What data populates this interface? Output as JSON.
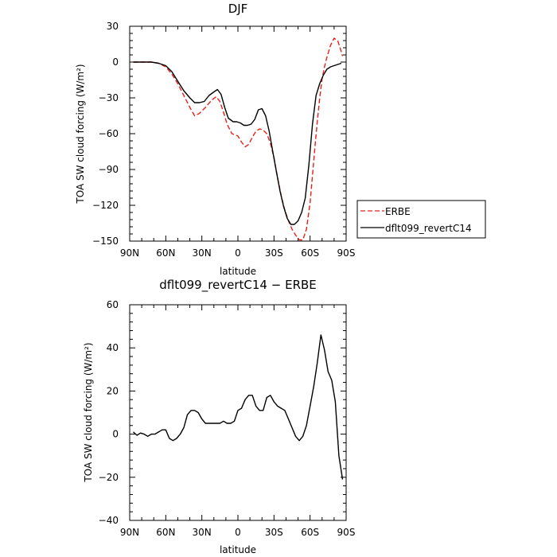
{
  "chart_data": [
    {
      "type": "line",
      "title": "DJF",
      "xlabel": "latitude",
      "ylabel": "TOA SW cloud forcing (W/m²)",
      "xlim": [
        90,
        -90
      ],
      "ylim": [
        -150,
        30
      ],
      "x_ticks": [
        90,
        60,
        30,
        0,
        -30,
        -60,
        -90
      ],
      "x_tick_labels": [
        "90N",
        "60N",
        "30N",
        "0",
        "30S",
        "60S",
        "90S"
      ],
      "y_ticks": [
        30,
        0,
        -30,
        -60,
        -90,
        -120,
        -150
      ],
      "y_tick_labels": [
        "30",
        "0",
        "−30",
        "−60",
        "−90",
        "−120",
        "−150"
      ],
      "legend_position": "right",
      "series": [
        {
          "name": "ERBE",
          "color": "#e8201a",
          "style": "dashed",
          "x": [
            87,
            80,
            72,
            66,
            60,
            55,
            50,
            45,
            40,
            36,
            32,
            27,
            22,
            18,
            15,
            12,
            9,
            5,
            2,
            0,
            -3,
            -6,
            -9,
            -12,
            -15,
            -18,
            -21,
            -24,
            -27,
            -30,
            -33,
            -36,
            -39,
            -42,
            -45,
            -48,
            -51,
            -54,
            -57,
            -60,
            -62,
            -64,
            -66,
            -68,
            -70,
            -72,
            -74,
            -77,
            -80,
            -83,
            -85,
            -87
          ],
          "y": [
            0,
            0,
            0,
            -1,
            -4,
            -10,
            -18,
            -28,
            -38,
            -45,
            -43,
            -38,
            -32,
            -29,
            -33,
            -42,
            -52,
            -60,
            -61,
            -62,
            -67,
            -71,
            -69,
            -63,
            -58,
            -56,
            -57,
            -60,
            -68,
            -80,
            -97,
            -112,
            -124,
            -133,
            -140,
            -145,
            -149,
            -149,
            -140,
            -118,
            -95,
            -72,
            -50,
            -30,
            -14,
            -4,
            4,
            14,
            20,
            18,
            12,
            5
          ]
        },
        {
          "name": "dflt099_revertC14",
          "color": "#000000",
          "style": "solid",
          "x": [
            87,
            80,
            72,
            66,
            60,
            55,
            50,
            45,
            40,
            36,
            32,
            28,
            24,
            20,
            17,
            14,
            11,
            8,
            4,
            1,
            -2,
            -5,
            -8,
            -11,
            -14,
            -17,
            -20,
            -23,
            -26,
            -29,
            -32,
            -35,
            -38,
            -41,
            -44,
            -47,
            -50,
            -53,
            -56,
            -59,
            -62,
            -65,
            -68,
            -71,
            -74,
            -77,
            -80,
            -83,
            -86
          ],
          "y": [
            0,
            0,
            0,
            -1,
            -3,
            -8,
            -16,
            -24,
            -30,
            -34,
            -34,
            -33,
            -28,
            -25,
            -23,
            -27,
            -38,
            -47,
            -50,
            -50,
            -51,
            -53,
            -53,
            -52,
            -48,
            -40,
            -39,
            -45,
            -58,
            -75,
            -92,
            -108,
            -121,
            -131,
            -136,
            -136,
            -133,
            -126,
            -114,
            -86,
            -52,
            -28,
            -18,
            -11,
            -6,
            -4,
            -3,
            -2,
            -1
          ]
        }
      ]
    },
    {
      "type": "line",
      "title": "dflt099_revertC14 − ERBE",
      "xlabel": "latitude",
      "ylabel": "TOA SW cloud forcing (W/m²)",
      "xlim": [
        90,
        -90
      ],
      "ylim": [
        -40,
        60
      ],
      "x_ticks": [
        90,
        60,
        30,
        0,
        -30,
        -60,
        -90
      ],
      "x_tick_labels": [
        "90N",
        "60N",
        "30N",
        "0",
        "30S",
        "60S",
        "90S"
      ],
      "y_ticks": [
        60,
        40,
        20,
        0,
        -20,
        -40
      ],
      "y_tick_labels": [
        "60",
        "40",
        "20",
        "0",
        "−20",
        "−40"
      ],
      "series": [
        {
          "name": "",
          "color": "#000000",
          "style": "solid",
          "x": [
            87,
            84,
            81,
            78,
            75,
            72,
            69,
            66,
            63,
            60,
            57,
            54,
            51,
            48,
            45,
            42,
            39,
            36,
            33,
            30,
            27,
            24,
            21,
            18,
            15,
            12,
            9,
            6,
            3,
            0,
            -3,
            -6,
            -9,
            -12,
            -15,
            -18,
            -21,
            -24,
            -27,
            -30,
            -33,
            -36,
            -39,
            -42,
            -45,
            -48,
            -51,
            -54,
            -57,
            -60,
            -63,
            -66,
            -69,
            -72,
            -75,
            -78,
            -81,
            -84,
            -87
          ],
          "y": [
            1,
            -0.5,
            0.5,
            0,
            -1,
            0,
            0,
            1,
            2,
            2,
            -2,
            -3,
            -2,
            0,
            3,
            9,
            11,
            11,
            10,
            7,
            5,
            5,
            5,
            5,
            5,
            6,
            5,
            5,
            6,
            11,
            12,
            16,
            18,
            18,
            13,
            11,
            11,
            17,
            18,
            15,
            13,
            12,
            11,
            7,
            3,
            -1,
            -3,
            -1,
            4,
            13,
            22,
            33,
            46,
            39,
            29,
            25,
            15,
            -10,
            -21
          ]
        }
      ]
    }
  ]
}
